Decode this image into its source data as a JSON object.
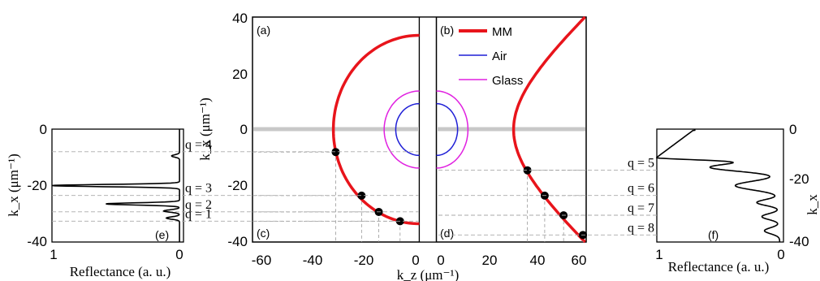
{
  "chart_data": {
    "type": "line",
    "main": {
      "panels": [
        "(a)",
        "(b)",
        "(c)",
        "(d)"
      ],
      "xlabel": "k_z (μm⁻¹)",
      "ylabel": "k_x (μm⁻¹)",
      "left_xlim": [
        -65,
        0
      ],
      "right_xlim": [
        0,
        65
      ],
      "ylim": [
        -40,
        40
      ],
      "left_xticks": [
        "-60",
        "-40",
        "-20",
        "0"
      ],
      "right_xticks": [
        "0",
        "20",
        "40",
        "60"
      ],
      "yticks": [
        "40",
        "20",
        "0",
        "-20",
        "-40"
      ],
      "legend": [
        {
          "name": "MM",
          "color": "#e8141b"
        },
        {
          "name": "Air",
          "color": "#1f1fd6"
        },
        {
          "name": "Glass",
          "color": "#e020e0"
        }
      ],
      "legend_position": "top-left of panel (b)",
      "series": [
        {
          "name": "MM",
          "kz0": 33.5,
          "left_points": [
            [
              -32.6,
              -8
            ],
            [
              -22.5,
              -23.5
            ],
            [
              -15.8,
              -29.3
            ],
            [
              -7.5,
              -32.6
            ]
          ],
          "right_points": [
            [
              39.5,
              -14.5
            ],
            [
              47.0,
              -23.5
            ],
            [
              55.2,
              -30.5
            ],
            [
              63.6,
              -37.5
            ]
          ]
        },
        {
          "name": "Air",
          "radius": 9.2
        },
        {
          "name": "Glass",
          "radius": 13.7
        }
      ]
    },
    "side_left": {
      "panel": "(e)",
      "xlabel": "Reflectance (a. u.)",
      "ylabel": "k_x (μm⁻¹)",
      "xticks": [
        "1",
        "0"
      ],
      "yticks": [
        "0",
        "-20",
        "-40"
      ],
      "ylim": [
        -40,
        0
      ],
      "q_labels": [
        "q = 4",
        "q = 3",
        "q = 2",
        "q = 1"
      ],
      "q_kx": [
        -8,
        -23.5,
        -29.3,
        -32.6
      ],
      "peaks_kx": [
        -20,
        -26.5
      ]
    },
    "side_right": {
      "panel": "(f)",
      "xlabel": "Reflectance (a. u.)",
      "ylabel": "k_x",
      "xticks": [
        "1",
        "0"
      ],
      "yticks": [
        "0",
        "-20",
        "-40"
      ],
      "ylim": [
        -40,
        0
      ],
      "q_labels": [
        "q = 5",
        "q = 6",
        "q = 7",
        "q = 8"
      ],
      "q_kx": [
        -14.5,
        -23.5,
        -30.5,
        -37.5
      ],
      "peaks_kx": [
        -10
      ]
    }
  }
}
